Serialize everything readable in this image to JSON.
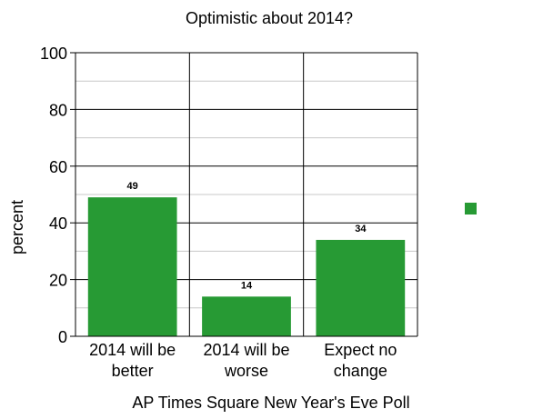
{
  "chart_data": {
    "type": "bar",
    "title": "Optimistic about 2014?",
    "xlabel": "AP Times Square New Year's Eve Poll",
    "ylabel": "percent",
    "ylim": [
      0,
      100
    ],
    "yticks": [
      "0",
      "20",
      "40",
      "60",
      "80",
      "100"
    ],
    "categories": [
      [
        "2014 will be",
        "better"
      ],
      [
        "2014 will be",
        "worse"
      ],
      [
        "Expect no",
        "change"
      ]
    ],
    "values": [
      49,
      14,
      34
    ],
    "data_labels": [
      "49",
      "14",
      "34"
    ],
    "bar_color": "#279a34",
    "grid": true,
    "legend": "right"
  }
}
